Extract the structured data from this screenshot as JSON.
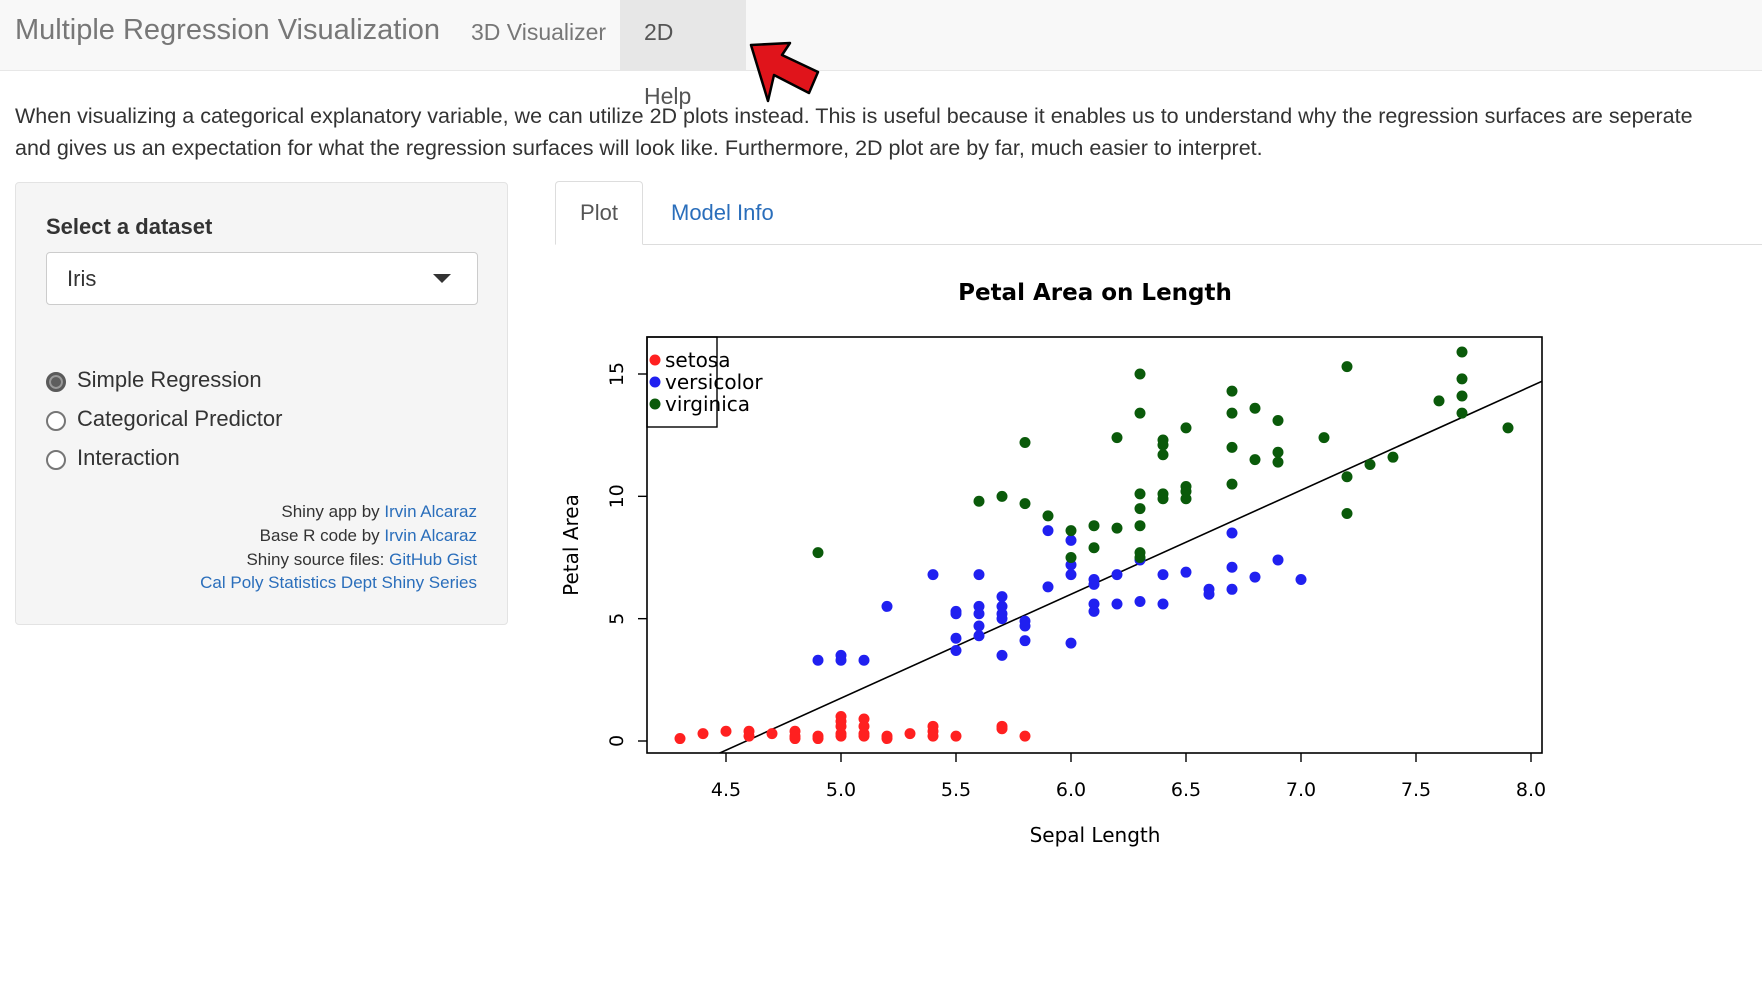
{
  "navbar": {
    "brand": "Multiple Regression Visualization",
    "tabs": [
      {
        "label": "3D Visualizer",
        "active": false
      },
      {
        "label": "2D Help",
        "active": true
      }
    ]
  },
  "description": "When visualizing a categorical explanatory variable, we can utilize 2D plots instead. This is useful because it enables us to understand why the regression surfaces are seperate and gives us an expectation for what the regression surfaces will look like. Furthermore, 2D plot are by far, much easier to interpret.",
  "sidebar": {
    "dataset_label": "Select a dataset",
    "dataset_value": "Iris",
    "model_options": [
      {
        "label": "Simple Regression",
        "selected": true
      },
      {
        "label": "Categorical Predictor",
        "selected": false
      },
      {
        "label": "Interaction",
        "selected": false
      }
    ],
    "credits": {
      "line1_prefix": "Shiny app by ",
      "line1_link": "Irvin Alcaraz",
      "line2_prefix": "Base R code by ",
      "line2_link": "Irvin Alcaraz",
      "line3_prefix": "Shiny source files: ",
      "line3_link": "GitHub Gist",
      "line4_link": "Cal Poly Statistics Dept Shiny Series"
    }
  },
  "main_tabs": [
    {
      "label": "Plot",
      "active": true
    },
    {
      "label": "Model Info",
      "active": false
    }
  ],
  "colors": {
    "link": "#2a6ebb",
    "arrow": "#e0141b",
    "setosa": "#ff2020",
    "versicolor": "#2020f0",
    "virginica": "#0a5a0a"
  },
  "chart_data": {
    "type": "scatter",
    "title": "Petal Area on Length",
    "xlabel": "Sepal Length",
    "ylabel": "Petal Area",
    "xlim": [
      4.3,
      7.9
    ],
    "ylim": [
      0,
      15.9
    ],
    "xticks": [
      "4.5",
      "5.0",
      "5.5",
      "6.0",
      "6.5",
      "7.0",
      "7.5",
      "8.0"
    ],
    "yticks": [
      "0",
      "5",
      "10",
      "15"
    ],
    "legend_position": "top-left",
    "fit_line": {
      "intercept": -19.5,
      "slope": 4.25
    },
    "series": [
      {
        "name": "setosa",
        "color": "#ff2020",
        "points": [
          [
            4.3,
            0.1
          ],
          [
            4.4,
            0.3
          ],
          [
            4.5,
            0.4
          ],
          [
            4.6,
            0.2
          ],
          [
            4.6,
            0.4
          ],
          [
            4.7,
            0.3
          ],
          [
            4.8,
            0.2
          ],
          [
            4.8,
            0.4
          ],
          [
            4.8,
            0.1
          ],
          [
            4.9,
            0.2
          ],
          [
            4.9,
            0.1
          ],
          [
            5.0,
            0.8
          ],
          [
            5.0,
            0.6
          ],
          [
            5.0,
            0.3
          ],
          [
            5.0,
            0.2
          ],
          [
            5.0,
            1.0
          ],
          [
            5.1,
            0.9
          ],
          [
            5.1,
            0.6
          ],
          [
            5.1,
            0.3
          ],
          [
            5.1,
            0.2
          ],
          [
            5.2,
            0.2
          ],
          [
            5.2,
            0.1
          ],
          [
            5.3,
            0.3
          ],
          [
            5.4,
            0.4
          ],
          [
            5.4,
            0.6
          ],
          [
            5.4,
            0.2
          ],
          [
            5.5,
            0.2
          ],
          [
            5.7,
            0.6
          ],
          [
            5.7,
            0.5
          ],
          [
            5.8,
            0.2
          ]
        ]
      },
      {
        "name": "versicolor",
        "color": "#2020f0",
        "points": [
          [
            4.9,
            3.3
          ],
          [
            5.0,
            3.5
          ],
          [
            5.0,
            3.3
          ],
          [
            5.1,
            3.3
          ],
          [
            5.2,
            5.5
          ],
          [
            5.4,
            6.8
          ],
          [
            5.5,
            5.3
          ],
          [
            5.5,
            5.2
          ],
          [
            5.5,
            4.2
          ],
          [
            5.5,
            3.7
          ],
          [
            5.6,
            6.8
          ],
          [
            5.6,
            5.5
          ],
          [
            5.6,
            5.2
          ],
          [
            5.6,
            4.7
          ],
          [
            5.6,
            4.3
          ],
          [
            5.7,
            5.9
          ],
          [
            5.7,
            5.5
          ],
          [
            5.7,
            5.2
          ],
          [
            5.7,
            5.0
          ],
          [
            5.7,
            3.5
          ],
          [
            5.8,
            4.9
          ],
          [
            5.8,
            4.7
          ],
          [
            5.8,
            4.1
          ],
          [
            5.9,
            8.6
          ],
          [
            5.9,
            6.3
          ],
          [
            6.0,
            8.2
          ],
          [
            6.0,
            7.2
          ],
          [
            6.0,
            6.8
          ],
          [
            6.0,
            4.0
          ],
          [
            6.1,
            6.6
          ],
          [
            6.1,
            6.4
          ],
          [
            6.1,
            5.6
          ],
          [
            6.1,
            5.3
          ],
          [
            6.2,
            6.8
          ],
          [
            6.2,
            5.6
          ],
          [
            6.3,
            7.4
          ],
          [
            6.3,
            5.7
          ],
          [
            6.4,
            6.8
          ],
          [
            6.4,
            5.6
          ],
          [
            6.5,
            6.9
          ],
          [
            6.6,
            6.2
          ],
          [
            6.6,
            6.0
          ],
          [
            6.7,
            8.5
          ],
          [
            6.7,
            7.1
          ],
          [
            6.7,
            6.2
          ],
          [
            6.8,
            6.7
          ],
          [
            6.9,
            7.4
          ],
          [
            7.0,
            6.6
          ]
        ]
      },
      {
        "name": "virginica",
        "color": "#0a5a0a",
        "points": [
          [
            4.9,
            7.7
          ],
          [
            5.6,
            9.8
          ],
          [
            5.7,
            10.0
          ],
          [
            5.8,
            12.2
          ],
          [
            5.8,
            9.7
          ],
          [
            5.9,
            9.2
          ],
          [
            6.0,
            8.6
          ],
          [
            6.0,
            7.5
          ],
          [
            6.1,
            8.8
          ],
          [
            6.1,
            7.9
          ],
          [
            6.2,
            12.4
          ],
          [
            6.2,
            8.7
          ],
          [
            6.3,
            15.0
          ],
          [
            6.3,
            13.4
          ],
          [
            6.3,
            10.1
          ],
          [
            6.3,
            9.5
          ],
          [
            6.3,
            8.8
          ],
          [
            6.3,
            7.7
          ],
          [
            6.3,
            7.5
          ],
          [
            6.4,
            12.3
          ],
          [
            6.4,
            12.1
          ],
          [
            6.4,
            11.7
          ],
          [
            6.4,
            10.1
          ],
          [
            6.4,
            9.9
          ],
          [
            6.5,
            12.8
          ],
          [
            6.5,
            10.4
          ],
          [
            6.5,
            10.2
          ],
          [
            6.5,
            9.9
          ],
          [
            6.7,
            14.3
          ],
          [
            6.7,
            13.4
          ],
          [
            6.7,
            12.0
          ],
          [
            6.7,
            10.5
          ],
          [
            6.8,
            13.6
          ],
          [
            6.8,
            11.5
          ],
          [
            6.9,
            13.1
          ],
          [
            6.9,
            11.8
          ],
          [
            6.9,
            11.4
          ],
          [
            7.1,
            12.4
          ],
          [
            7.2,
            15.3
          ],
          [
            7.2,
            10.8
          ],
          [
            7.2,
            9.3
          ],
          [
            7.3,
            11.3
          ],
          [
            7.4,
            11.6
          ],
          [
            7.6,
            13.9
          ],
          [
            7.7,
            15.9
          ],
          [
            7.7,
            14.8
          ],
          [
            7.7,
            14.1
          ],
          [
            7.7,
            13.4
          ],
          [
            7.9,
            12.8
          ]
        ]
      }
    ]
  }
}
